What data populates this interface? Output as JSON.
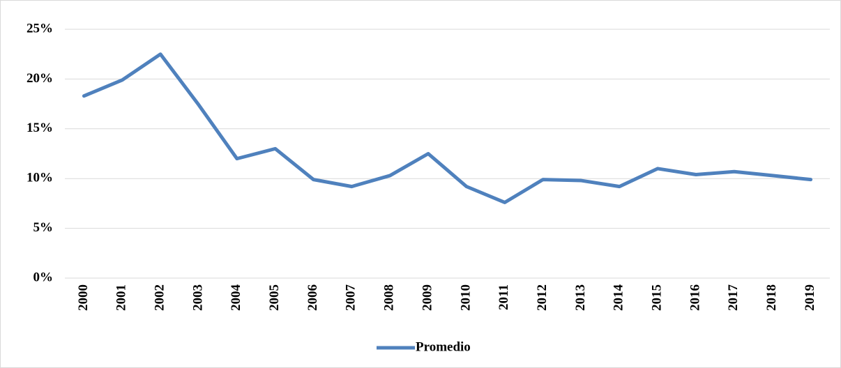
{
  "chart_data": {
    "type": "line",
    "categories": [
      "2000",
      "2001",
      "2002",
      "2003",
      "2004",
      "2005",
      "2006",
      "2007",
      "2008",
      "2009",
      "2010",
      "2011",
      "2012",
      "2013",
      "2014",
      "2015",
      "2016",
      "2017",
      "2018",
      "2019"
    ],
    "series": [
      {
        "name": "Promedio",
        "color": "#4f81bd",
        "values": [
          18.3,
          19.9,
          22.5,
          17.4,
          12.0,
          13.0,
          9.9,
          9.2,
          10.3,
          12.5,
          9.2,
          7.6,
          9.9,
          9.8,
          9.2,
          11.0,
          10.4,
          10.7,
          10.3,
          9.9
        ]
      }
    ],
    "ylim": [
      0,
      25
    ],
    "yticks": [
      {
        "value": 0,
        "label": "0%"
      },
      {
        "value": 5,
        "label": "5%"
      },
      {
        "value": 10,
        "label": "10%"
      },
      {
        "value": 15,
        "label": "15%"
      },
      {
        "value": 20,
        "label": "20%"
      },
      {
        "value": 25,
        "label": "25%"
      }
    ],
    "grid": true,
    "legend": "bottom"
  }
}
